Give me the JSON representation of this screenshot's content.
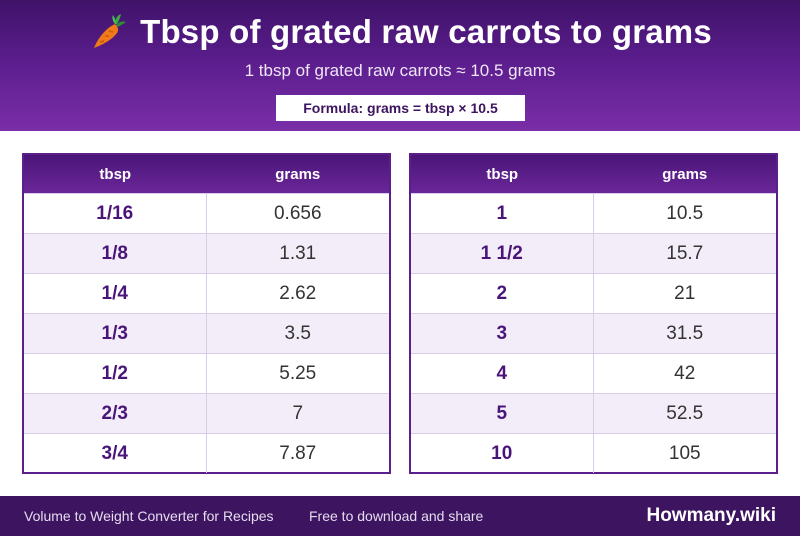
{
  "header": {
    "title": "Tbsp of grated raw carrots to grams",
    "subtitle": "1 tbsp of grated raw carrots ≈ 10.5 grams",
    "formula": "Formula: grams = tbsp × 10.5",
    "icon": "carrot-icon"
  },
  "tables": [
    {
      "headers": [
        "tbsp",
        "grams"
      ],
      "rows": [
        [
          "1/16",
          "0.656"
        ],
        [
          "1/8",
          "1.31"
        ],
        [
          "1/4",
          "2.62"
        ],
        [
          "1/3",
          "3.5"
        ],
        [
          "1/2",
          "5.25"
        ],
        [
          "2/3",
          "7"
        ],
        [
          "3/4",
          "7.87"
        ]
      ]
    },
    {
      "headers": [
        "tbsp",
        "grams"
      ],
      "rows": [
        [
          "1",
          "10.5"
        ],
        [
          "1 1/2",
          "15.7"
        ],
        [
          "2",
          "21"
        ],
        [
          "3",
          "31.5"
        ],
        [
          "4",
          "42"
        ],
        [
          "5",
          "52.5"
        ],
        [
          "10",
          "105"
        ]
      ]
    }
  ],
  "footer": {
    "left_text": "Volume to Weight Converter for Recipes",
    "mid_text": "Free to download and share",
    "brand": "Howmany.wiki"
  },
  "colors": {
    "header_dark": "#3f1268",
    "header_light": "#7a2ea8",
    "accent": "#4a1578",
    "footer": "#3d1460"
  }
}
